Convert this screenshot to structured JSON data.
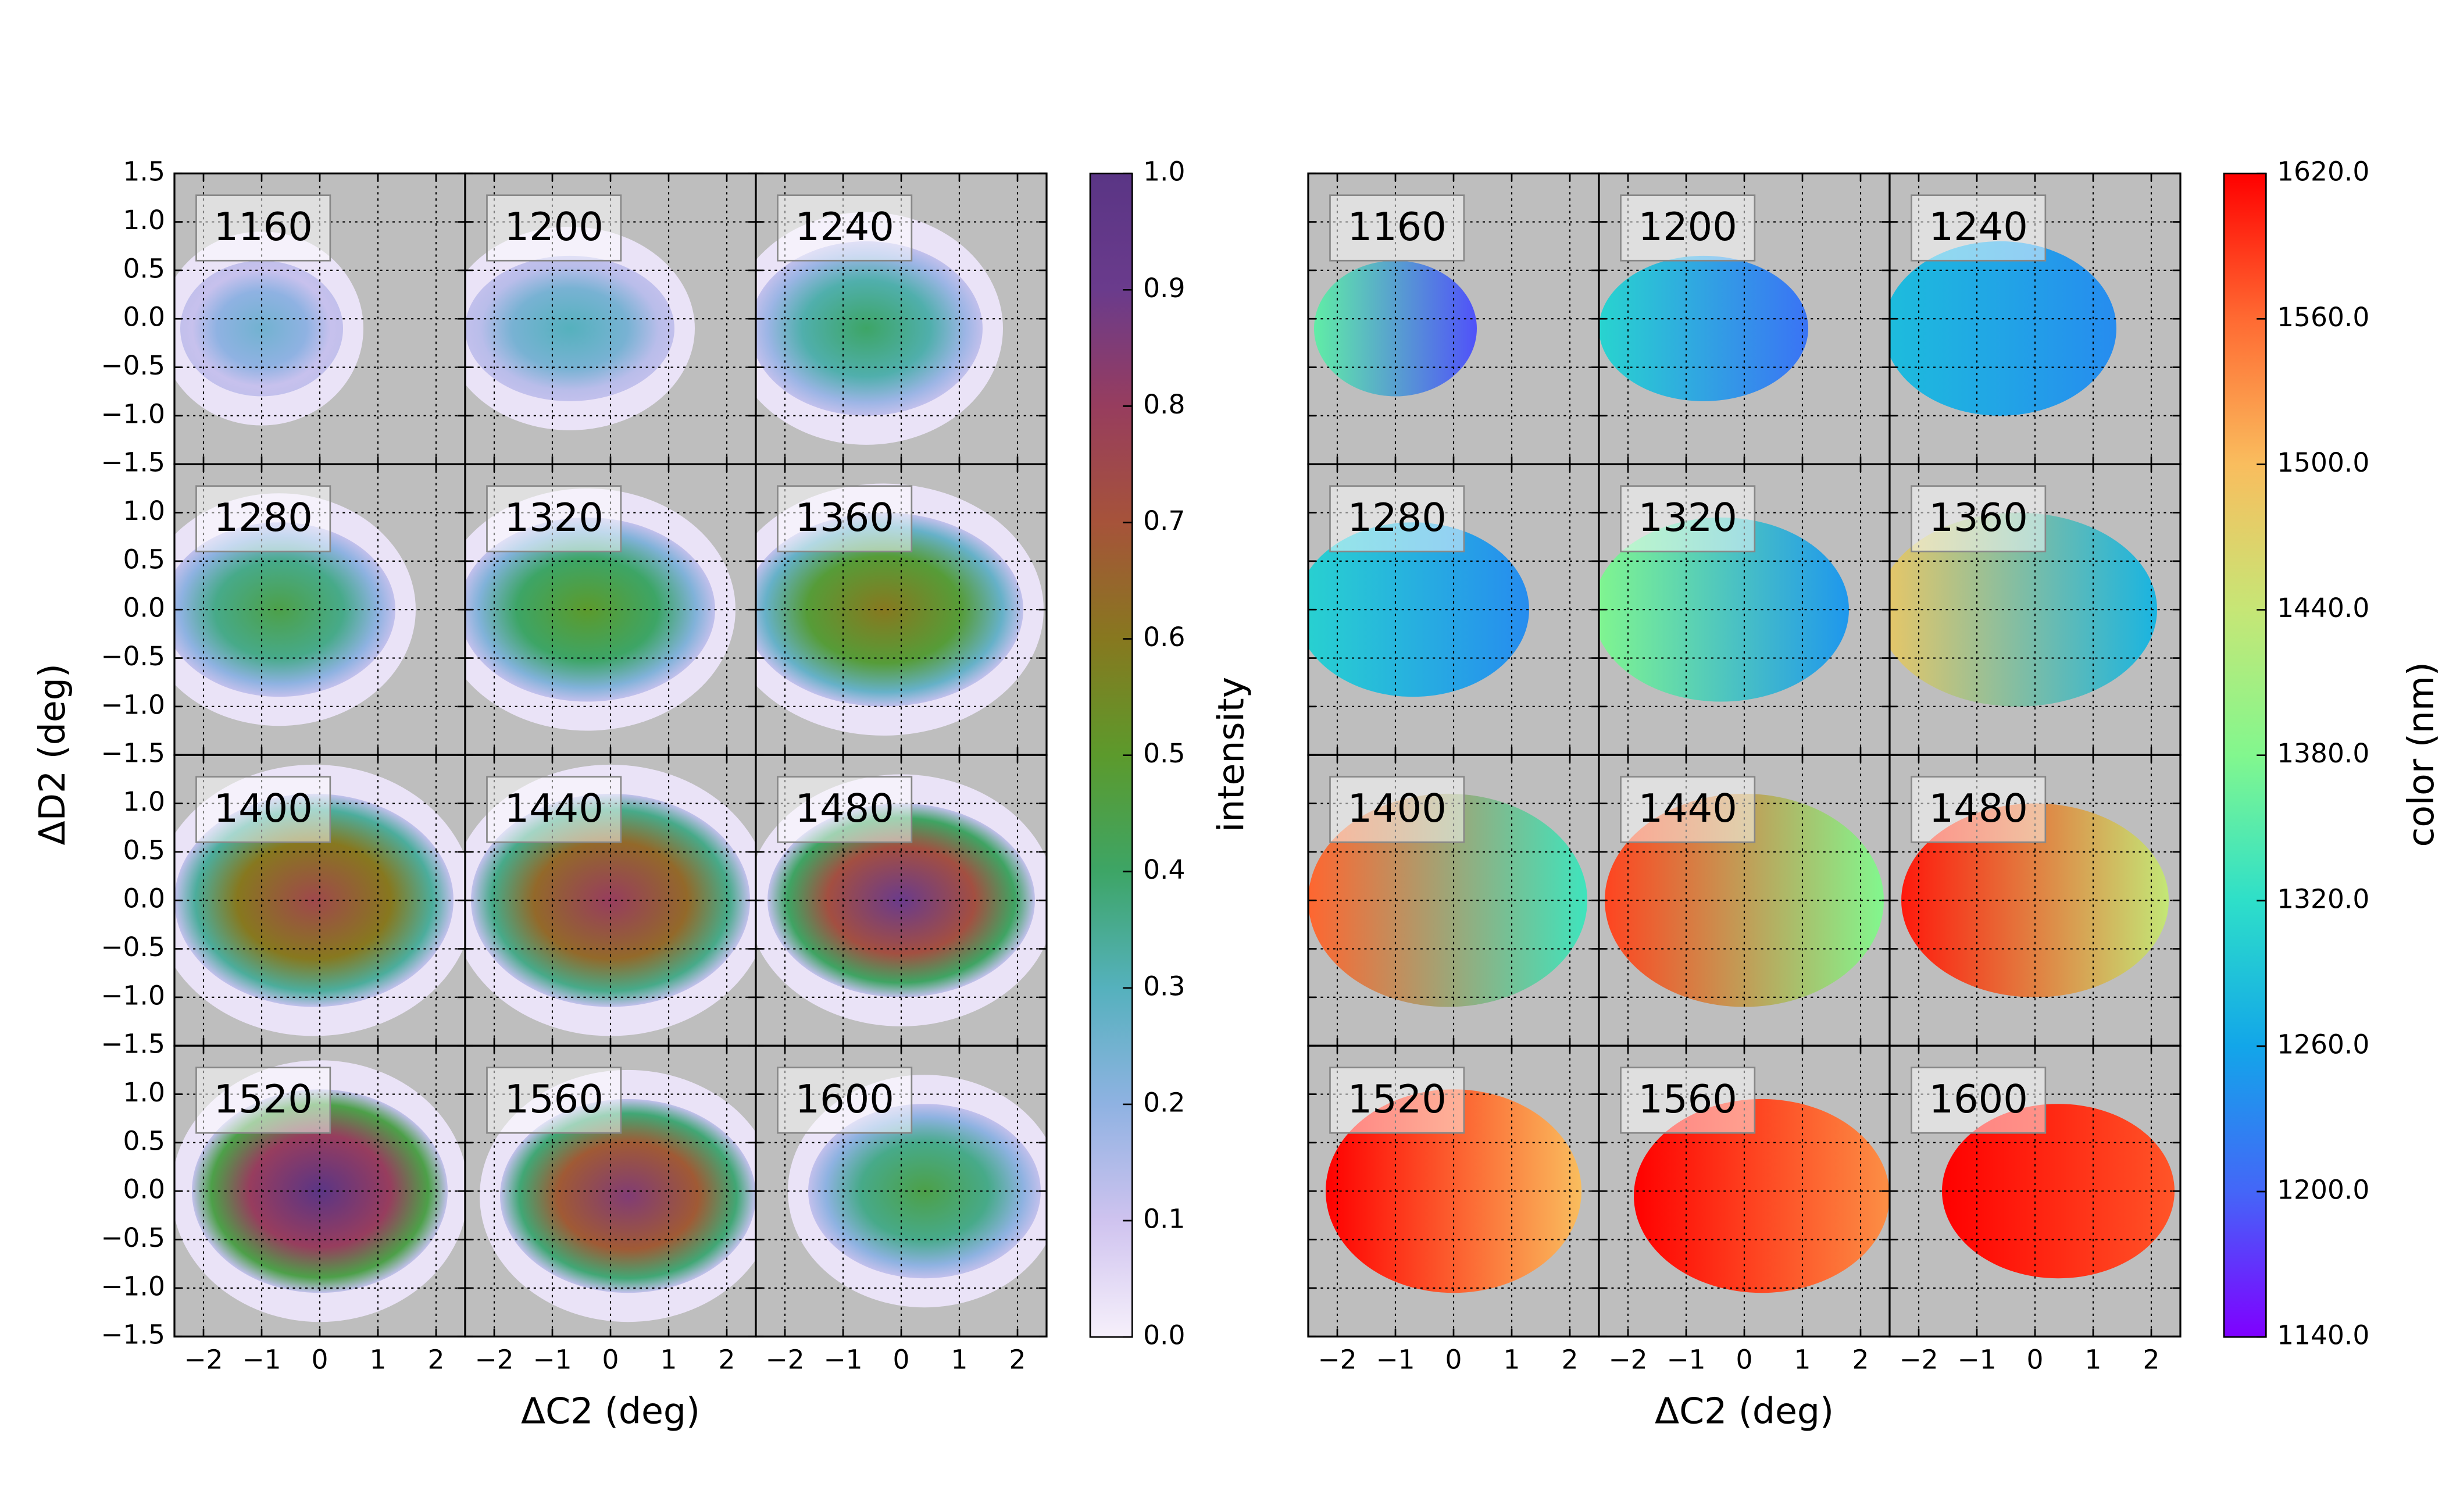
{
  "chart_data": [
    {
      "type": "heatmap-grid",
      "panel_labels": [
        "1160",
        "1200",
        "1240",
        "1280",
        "1320",
        "1360",
        "1400",
        "1440",
        "1480",
        "1520",
        "1560",
        "1600"
      ],
      "xlabel": "ΔC2 (deg)",
      "ylabel": "ΔD2 (deg)",
      "xlim": [
        -2.5,
        2.5
      ],
      "ylim": [
        -1.5,
        1.5
      ],
      "xticks": [
        {
          "value": -2,
          "label": "−2"
        },
        {
          "value": -1,
          "label": "−1"
        },
        0,
        1,
        2
      ],
      "yticks": [
        {
          "value": -1.5,
          "label": "−1.5"
        },
        {
          "value": -1,
          "label": "−1.0"
        },
        {
          "value": -0.5,
          "label": "−0.5"
        },
        {
          "value": 0,
          "label": "0.0"
        },
        0.5,
        {
          "value": 1,
          "label": "1.0"
        },
        1.5
      ],
      "ytick_labels": true,
      "grid": true,
      "colorbar": {
        "label": "intensity",
        "lim": [
          0,
          1
        ],
        "ticks": [
          {
            "value": 0,
            "label": "0.0"
          },
          0.1,
          0.2,
          0.3,
          0.4,
          0.5,
          0.6,
          0.7,
          0.8,
          0.9,
          {
            "value": 1,
            "label": "1.0"
          }
        ],
        "colormap": [
          "#f6f0fb",
          "#cfc3ef",
          "#8fb2e2",
          "#55b1bd",
          "#3da566",
          "#5c9a2c",
          "#87781f",
          "#a6533a",
          "#973d5e",
          "#6a3b8c",
          "#5a3585"
        ]
      }
    },
    {
      "type": "heatmap-grid",
      "panel_labels": [
        "1160",
        "1200",
        "1240",
        "1280",
        "1320",
        "1360",
        "1400",
        "1440",
        "1480",
        "1520",
        "1560",
        "1600"
      ],
      "xlabel": "ΔC2 (deg)",
      "xlim": [
        -2.5,
        2.5
      ],
      "ylim": [
        -1.5,
        1.5
      ],
      "xticks": [
        {
          "value": -2,
          "label": "−2"
        },
        {
          "value": -1,
          "label": "−1"
        },
        0,
        1,
        2
      ],
      "yticks": [
        -1.5,
        -1,
        -0.5,
        0,
        0.5,
        1,
        1.5
      ],
      "ytick_labels": false,
      "grid": true,
      "colorbar": {
        "label": "color (nm)",
        "lim": [
          1140,
          1620
        ],
        "ticks": [
          {
            "value": 1140,
            "label": "1140.0"
          },
          {
            "value": 1200,
            "label": "1200.0"
          },
          {
            "value": 1260,
            "label": "1260.0"
          },
          {
            "value": 1320,
            "label": "1320.0"
          },
          {
            "value": 1380,
            "label": "1380.0"
          },
          {
            "value": 1440,
            "label": "1440.0"
          },
          {
            "value": 1500,
            "label": "1500.0"
          },
          {
            "value": 1560,
            "label": "1560.0"
          },
          {
            "value": 1620,
            "label": "1620.0"
          }
        ],
        "colormap": [
          "#7f00ff",
          "#4466f8",
          "#12a6e9",
          "#2edfc9",
          "#82f78e",
          "#c6e676",
          "#f9bd5e",
          "#ff6a32",
          "#ff0000"
        ]
      }
    }
  ]
}
